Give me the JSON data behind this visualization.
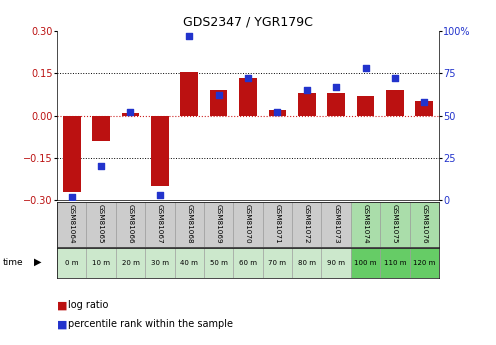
{
  "title": "GDS2347 / YGR179C",
  "samples": [
    "GSM81064",
    "GSM81065",
    "GSM81066",
    "GSM81067",
    "GSM81068",
    "GSM81069",
    "GSM81070",
    "GSM81071",
    "GSM81072",
    "GSM81073",
    "GSM81074",
    "GSM81075",
    "GSM81076"
  ],
  "time_labels": [
    "0 m",
    "10 m",
    "20 m",
    "30 m",
    "40 m",
    "50 m",
    "60 m",
    "70 m",
    "80 m",
    "90 m",
    "100 m",
    "110 m",
    "120 m"
  ],
  "log_ratio": [
    -0.27,
    -0.09,
    0.01,
    -0.25,
    0.155,
    0.09,
    0.135,
    0.02,
    0.08,
    0.08,
    0.07,
    0.09,
    0.05
  ],
  "percentile": [
    2,
    20,
    52,
    3,
    97,
    62,
    72,
    52,
    65,
    67,
    78,
    72,
    58
  ],
  "ylim_left": [
    -0.3,
    0.3
  ],
  "ylim_right": [
    0,
    100
  ],
  "yticks_left": [
    -0.3,
    -0.15,
    0.0,
    0.15,
    0.3
  ],
  "yticks_right": [
    0,
    25,
    50,
    75,
    100
  ],
  "bar_color": "#bb1111",
  "dot_color": "#2233cc",
  "bg_color": "#ffffff",
  "zero_line_color": "#cc2222",
  "sample_bg_gray": "#cccccc",
  "sample_bg_green": "#aaddaa",
  "time_bg_light": "#cce8cc",
  "time_bg_green": "#66cc66",
  "legend_log_color": "#bb1111",
  "legend_pct_color": "#2233cc"
}
